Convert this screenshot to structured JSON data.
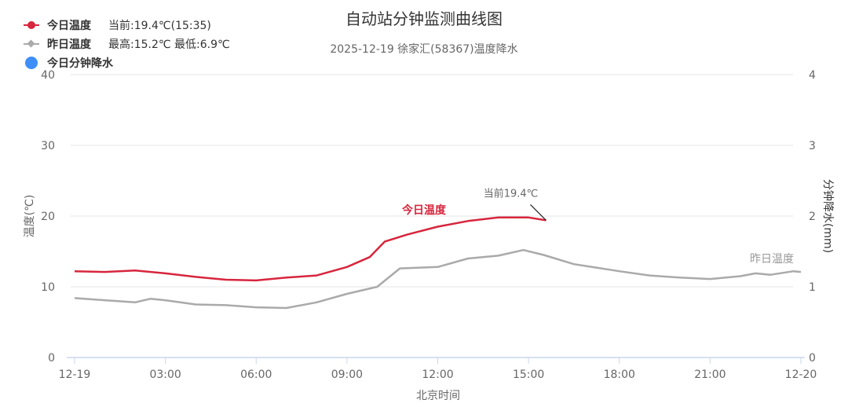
{
  "title": "自动站分钟监测曲线图",
  "subtitle": "2025-12-19 徐家汇(58367)温度降水",
  "colors": {
    "today": "#d7263d",
    "yesterday": "#aaaaaa",
    "precip": "#3e8ef7",
    "grid": "#e6e6e6",
    "axis": "#ccd6eb",
    "tick_text": "#666666"
  },
  "legend": [
    {
      "label": "今日温度",
      "info": "当前:19.4℃(15:35)",
      "icon": "line-dot-icon"
    },
    {
      "label": "昨日温度",
      "info": "最高:15.2℃ 最低:6.9℃",
      "icon": "line-diamond-icon"
    },
    {
      "label": "今日分钟降水",
      "info": "",
      "icon": "circle-icon"
    }
  ],
  "annotations": {
    "current_label": "当前19.4℃",
    "today_series_label": "今日温度",
    "yesterday_series_label": "昨日温度"
  },
  "chart_data": {
    "type": "line",
    "title": "自动站分钟监测曲线图",
    "subtitle": "2025-12-19 徐家汇(58367)温度降水",
    "xlabel": "北京时间",
    "ylabel": "温度(℃)",
    "y2label": "分钟降水(mm)",
    "x_ticks": [
      "12-19",
      "03:00",
      "06:00",
      "09:00",
      "12:00",
      "15:00",
      "18:00",
      "21:00",
      "12-20"
    ],
    "y_ticks": [
      "0",
      "10",
      "20",
      "30",
      "40"
    ],
    "y2_ticks": [
      "0",
      "1",
      "2",
      "3",
      "4"
    ],
    "ylim": [
      0,
      40
    ],
    "y2lim": [
      0,
      4
    ],
    "xlim_hours": [
      0,
      24
    ],
    "grid": true,
    "legend_position": "top-left",
    "series": [
      {
        "name": "今日温度",
        "color": "#d7263d",
        "x_hours": [
          0,
          1,
          2,
          3,
          4,
          5,
          6,
          7,
          8,
          9,
          9.75,
          10.25,
          11,
          12,
          13,
          14,
          15,
          15.58
        ],
        "values": [
          12.2,
          12.1,
          12.3,
          11.9,
          11.4,
          11.0,
          10.9,
          11.3,
          11.6,
          12.8,
          14.2,
          16.4,
          17.4,
          18.5,
          19.3,
          19.8,
          19.8,
          19.4
        ]
      },
      {
        "name": "昨日温度",
        "color": "#aaaaaa",
        "x_hours": [
          0,
          1,
          2,
          2.5,
          3,
          4,
          5,
          6,
          7,
          8,
          9,
          10,
          10.75,
          12,
          13,
          14,
          14.83,
          15.5,
          16.5,
          18,
          19,
          20,
          21,
          22,
          22.5,
          23,
          23.75,
          24
        ],
        "values": [
          8.4,
          8.1,
          7.8,
          8.3,
          8.1,
          7.5,
          7.4,
          7.1,
          7.0,
          7.8,
          9.0,
          10.0,
          12.6,
          12.8,
          14.0,
          14.4,
          15.2,
          14.5,
          13.2,
          12.2,
          11.6,
          11.3,
          11.1,
          11.5,
          11.9,
          11.7,
          12.2,
          12.1
        ]
      },
      {
        "name": "今日分钟降水",
        "color": "#3e8ef7",
        "x_hours": [],
        "values": []
      }
    ],
    "annotations": [
      {
        "text": "当前19.4℃",
        "x_hours": 15.58,
        "y": 19.4
      },
      {
        "text": "今日温度",
        "x_hours": 11.5,
        "y": 20.5
      },
      {
        "text": "昨日温度",
        "x_hours": 23.2,
        "y": 13.8
      }
    ]
  }
}
